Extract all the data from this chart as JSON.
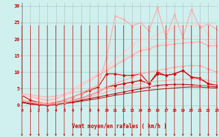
{
  "background_color": "#cff0ee",
  "grid_color": "#aabbbb",
  "xlabel": "Vent moyen/en rafales ( km/h )",
  "x_ticks": [
    0,
    1,
    2,
    3,
    4,
    5,
    6,
    7,
    8,
    9,
    10,
    11,
    12,
    13,
    14,
    15,
    16,
    17,
    18,
    19,
    20,
    21,
    22,
    23
  ],
  "y_ticks": [
    0,
    5,
    10,
    15,
    20,
    25,
    30
  ],
  "xlim": [
    0,
    23
  ],
  "ylim": [
    -0.5,
    31
  ],
  "series": [
    {
      "x": [
        0,
        1,
        2,
        3,
        4,
        5,
        6,
        7,
        8,
        9,
        10,
        11,
        12,
        13,
        14,
        15,
        16,
        17,
        18,
        19,
        20,
        21,
        22,
        23
      ],
      "y": [
        0.8,
        0.3,
        0.1,
        0.0,
        0.2,
        0.5,
        0.8,
        1.2,
        1.6,
        2.0,
        2.5,
        3.0,
        3.4,
        3.8,
        4.2,
        4.5,
        4.8,
        5.0,
        5.2,
        5.4,
        5.5,
        5.5,
        5.3,
        5.2
      ],
      "color": "#aa0000",
      "marker": null,
      "linewidth": 0.7,
      "markersize": 0
    },
    {
      "x": [
        0,
        1,
        2,
        3,
        4,
        5,
        6,
        7,
        8,
        9,
        10,
        11,
        12,
        13,
        14,
        15,
        16,
        17,
        18,
        19,
        20,
        21,
        22,
        23
      ],
      "y": [
        1.0,
        0.5,
        0.2,
        0.0,
        0.2,
        0.5,
        1.0,
        1.5,
        2.0,
        2.5,
        3.0,
        3.5,
        4.0,
        4.5,
        5.0,
        5.5,
        6.0,
        6.2,
        6.3,
        6.3,
        6.2,
        6.0,
        5.8,
        5.5
      ],
      "color": "#bb1111",
      "marker": "D",
      "linewidth": 0.8,
      "markersize": 2.0
    },
    {
      "x": [
        0,
        1,
        2,
        3,
        4,
        5,
        6,
        7,
        8,
        9,
        10,
        11,
        12,
        13,
        14,
        15,
        16,
        17,
        18,
        19,
        20,
        21,
        22,
        23
      ],
      "y": [
        1.5,
        0.8,
        0.3,
        0.2,
        0.4,
        0.8,
        1.5,
        2.2,
        3.0,
        4.0,
        5.5,
        6.0,
        6.5,
        7.0,
        7.5,
        6.5,
        9.5,
        9.0,
        9.5,
        10.5,
        8.5,
        8.0,
        6.5,
        6.0
      ],
      "color": "#cc0000",
      "marker": "D",
      "linewidth": 0.9,
      "markersize": 2.5
    },
    {
      "x": [
        0,
        1,
        2,
        3,
        4,
        5,
        6,
        7,
        8,
        9,
        10,
        11,
        12,
        13,
        14,
        15,
        16,
        17,
        18,
        19,
        20,
        21,
        22,
        23
      ],
      "y": [
        3.0,
        1.5,
        0.8,
        0.5,
        0.8,
        1.5,
        2.5,
        3.5,
        4.5,
        5.5,
        9.5,
        9.5,
        9.0,
        9.0,
        9.5,
        6.5,
        10.0,
        9.0,
        9.5,
        10.5,
        8.5,
        8.2,
        6.5,
        6.0
      ],
      "color": "#dd1111",
      "marker": "D",
      "linewidth": 0.9,
      "markersize": 2.5
    },
    {
      "x": [
        0,
        1,
        2,
        3,
        4,
        5,
        6,
        7,
        8,
        9,
        10,
        11,
        12,
        13,
        14,
        15,
        16,
        17,
        18,
        19,
        20,
        21,
        22,
        23
      ],
      "y": [
        3.5,
        3.2,
        2.8,
        2.5,
        2.8,
        3.2,
        3.8,
        4.2,
        4.5,
        4.8,
        5.0,
        5.2,
        5.3,
        5.4,
        5.5,
        5.6,
        5.7,
        5.7,
        5.8,
        5.8,
        5.9,
        5.9,
        5.9,
        6.0
      ],
      "color": "#ffaaaa",
      "marker": null,
      "linewidth": 0.7,
      "markersize": 0
    },
    {
      "x": [
        0,
        1,
        2,
        3,
        4,
        5,
        6,
        7,
        8,
        9,
        10,
        11,
        12,
        13,
        14,
        15,
        16,
        17,
        18,
        19,
        20,
        21,
        22,
        23
      ],
      "y": [
        1.5,
        0.8,
        0.4,
        0.2,
        0.4,
        0.8,
        1.3,
        1.8,
        2.5,
        3.2,
        4.0,
        4.8,
        5.5,
        6.0,
        6.5,
        7.0,
        7.3,
        7.5,
        7.7,
        7.8,
        7.9,
        8.0,
        7.5,
        7.0
      ],
      "color": "#ffaaaa",
      "marker": null,
      "linewidth": 0.7,
      "markersize": 0
    },
    {
      "x": [
        0,
        1,
        2,
        3,
        4,
        5,
        6,
        7,
        8,
        9,
        10,
        11,
        12,
        13,
        14,
        15,
        16,
        17,
        18,
        19,
        20,
        21,
        22,
        23
      ],
      "y": [
        3.2,
        2.5,
        2.0,
        1.5,
        2.0,
        3.0,
        4.5,
        6.0,
        7.5,
        9.0,
        10.5,
        12.0,
        13.5,
        15.0,
        16.5,
        17.0,
        18.0,
        18.2,
        18.5,
        18.8,
        19.0,
        19.2,
        18.0,
        18.0
      ],
      "color": "#ffaaaa",
      "marker": "D",
      "linewidth": 0.9,
      "markersize": 2.2
    },
    {
      "x": [
        0,
        1,
        2,
        3,
        4,
        5,
        6,
        7,
        8,
        9,
        10,
        11,
        12,
        13,
        14,
        15,
        16,
        17,
        18,
        19,
        20,
        21,
        22,
        23
      ],
      "y": [
        1.5,
        1.0,
        0.5,
        0.3,
        0.5,
        0.8,
        1.5,
        2.2,
        3.0,
        4.0,
        5.5,
        6.5,
        7.5,
        8.5,
        9.5,
        10.0,
        10.5,
        11.0,
        11.5,
        11.8,
        12.0,
        12.0,
        11.0,
        10.0
      ],
      "color": "#ffaaaa",
      "marker": "D",
      "linewidth": 0.9,
      "markersize": 2.2
    },
    {
      "x": [
        0,
        1,
        2,
        3,
        4,
        5,
        6,
        7,
        8,
        9,
        10,
        11,
        12,
        13,
        14,
        15,
        16,
        17,
        18,
        19,
        20,
        21,
        22,
        23
      ],
      "y": [
        3.2,
        2.8,
        2.5,
        2.2,
        2.5,
        3.5,
        5.0,
        6.5,
        8.0,
        9.5,
        11.0,
        12.5,
        14.0,
        15.5,
        17.0,
        17.5,
        18.5,
        19.0,
        19.5,
        20.0,
        20.5,
        21.0,
        19.0,
        18.5
      ],
      "color": "#ffcccc",
      "marker": null,
      "linewidth": 0.7,
      "markersize": 0
    },
    {
      "x": [
        0,
        1,
        2,
        3,
        4,
        5,
        6,
        7,
        8,
        9,
        10,
        11,
        12,
        13,
        14,
        15,
        16,
        17,
        18,
        19,
        20,
        21,
        22,
        23
      ],
      "y": [
        3.2,
        2.5,
        1.8,
        1.2,
        1.8,
        3.0,
        4.5,
        6.0,
        7.5,
        9.5,
        11.5,
        14.0,
        16.0,
        18.0,
        20.0,
        20.0,
        21.5,
        22.5,
        23.5,
        24.0,
        24.0,
        24.5,
        21.5,
        18.5
      ],
      "color": "#ffcccc",
      "marker": "D",
      "linewidth": 0.9,
      "markersize": 2.2
    },
    {
      "x": [
        0,
        1,
        2,
        3,
        4,
        5,
        6,
        7,
        8,
        9,
        10,
        11,
        12,
        13,
        14,
        15,
        16,
        17,
        18,
        19,
        20,
        21,
        22,
        23
      ],
      "y": [
        1.5,
        1.0,
        0.8,
        0.5,
        1.0,
        1.5,
        2.5,
        3.5,
        5.0,
        6.0,
        14.5,
        27.0,
        26.0,
        24.0,
        25.0,
        22.5,
        29.5,
        20.5,
        27.5,
        20.5,
        29.0,
        23.5,
        24.5,
        23.0
      ],
      "color": "#ffaaaa",
      "marker": "D",
      "linewidth": 0.9,
      "markersize": 2.2
    }
  ]
}
